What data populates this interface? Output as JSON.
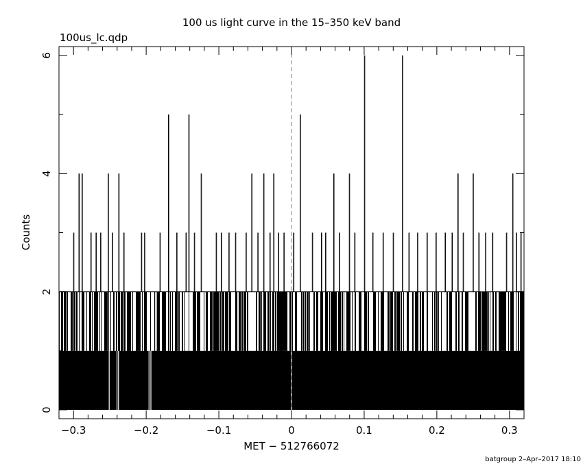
{
  "chart_data": {
    "type": "bar",
    "title": "100 us light curve in the 15–350 keV band",
    "subtitle": "100us_lc.qdp",
    "xlabel": "MET − 512766072",
    "ylabel": "Counts",
    "footer": "batgroup  2–Apr–2017 18:10",
    "xlim": [
      -0.32,
      0.32
    ],
    "ylim": [
      -0.15,
      6.15
    ],
    "x_ticks": [
      -0.3,
      -0.2,
      -0.1,
      0,
      0.1,
      0.2,
      0.3
    ],
    "x_tick_labels": [
      "−0.3",
      "−0.2",
      "−0.1",
      "0",
      "0.1",
      "0.2",
      "0.3"
    ],
    "y_ticks": [
      0,
      2,
      4,
      6
    ],
    "y_tick_labels": [
      "0",
      "2",
      "4",
      "6"
    ],
    "reference_line": {
      "x": 0,
      "color": "#3a9ac9",
      "style": "dashed"
    },
    "bin_width": 0.0001,
    "baseline_count": 1,
    "spikes": [
      {
        "x": -0.2926,
        "value": 4
      },
      {
        "x": -0.2883,
        "value": 4
      },
      {
        "x": -0.2523,
        "value": 4
      },
      {
        "x": -0.2378,
        "value": 4
      },
      {
        "x": -0.1694,
        "value": 5
      },
      {
        "x": -0.1414,
        "value": 5
      },
      {
        "x": -0.1244,
        "value": 4
      },
      {
        "x": -0.0548,
        "value": 4
      },
      {
        "x": -0.0384,
        "value": 4
      },
      {
        "x": -0.0246,
        "value": 4
      },
      {
        "x": 0.0119,
        "value": 5
      },
      {
        "x": 0.058,
        "value": 4
      },
      {
        "x": 0.0795,
        "value": 4
      },
      {
        "x": 0.1003,
        "value": 6
      },
      {
        "x": 0.1526,
        "value": 6
      },
      {
        "x": 0.2289,
        "value": 4
      },
      {
        "x": 0.2499,
        "value": 4
      },
      {
        "x": 0.3043,
        "value": 4
      },
      {
        "x": -0.3,
        "value": 3
      },
      {
        "x": -0.2762,
        "value": 3
      },
      {
        "x": -0.2691,
        "value": 3
      },
      {
        "x": -0.2628,
        "value": 3
      },
      {
        "x": -0.2465,
        "value": 3
      },
      {
        "x": -0.2309,
        "value": 3
      },
      {
        "x": -0.2066,
        "value": 3
      },
      {
        "x": -0.2023,
        "value": 3
      },
      {
        "x": -0.1811,
        "value": 3
      },
      {
        "x": -0.158,
        "value": 3
      },
      {
        "x": -0.1453,
        "value": 3
      },
      {
        "x": -0.1338,
        "value": 3
      },
      {
        "x": -0.1037,
        "value": 3
      },
      {
        "x": -0.0968,
        "value": 3
      },
      {
        "x": -0.0862,
        "value": 3
      },
      {
        "x": -0.0772,
        "value": 3
      },
      {
        "x": -0.0626,
        "value": 3
      },
      {
        "x": -0.0464,
        "value": 3
      },
      {
        "x": -0.0298,
        "value": 3
      },
      {
        "x": -0.018,
        "value": 3
      },
      {
        "x": -0.0105,
        "value": 3
      },
      {
        "x": 0.0028,
        "value": 3
      },
      {
        "x": 0.0286,
        "value": 3
      },
      {
        "x": 0.0411,
        "value": 3
      },
      {
        "x": 0.0468,
        "value": 3
      },
      {
        "x": 0.0657,
        "value": 3
      },
      {
        "x": 0.0869,
        "value": 3
      },
      {
        "x": 0.1117,
        "value": 3
      },
      {
        "x": 0.1259,
        "value": 3
      },
      {
        "x": 0.1399,
        "value": 3
      },
      {
        "x": 0.1615,
        "value": 3
      },
      {
        "x": 0.1734,
        "value": 3
      },
      {
        "x": 0.1864,
        "value": 3
      },
      {
        "x": 0.1988,
        "value": 3
      },
      {
        "x": 0.2114,
        "value": 3
      },
      {
        "x": 0.2209,
        "value": 3
      },
      {
        "x": 0.2362,
        "value": 3
      },
      {
        "x": 0.2577,
        "value": 3
      },
      {
        "x": 0.267,
        "value": 3
      },
      {
        "x": 0.2766,
        "value": 3
      },
      {
        "x": 0.2957,
        "value": 3
      },
      {
        "x": 0.3092,
        "value": 3
      },
      {
        "x": 0.3156,
        "value": 3
      }
    ],
    "gaps": [
      -0.2509,
      -0.2401,
      -0.2381,
      -0.1961,
      -0.1935,
      0.0
    ]
  }
}
